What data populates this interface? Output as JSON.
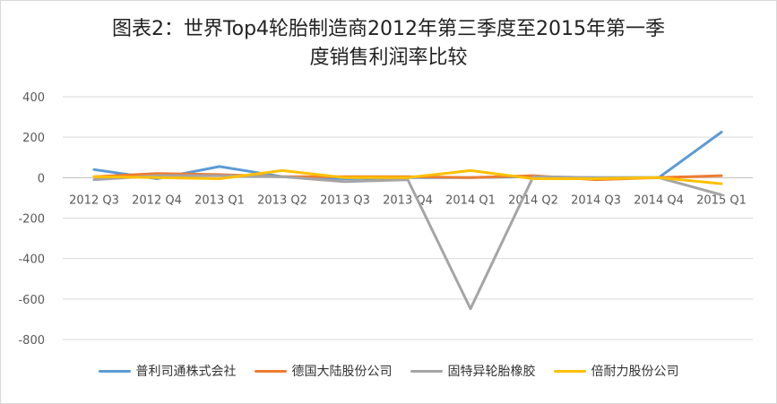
{
  "chart_data": {
    "type": "line",
    "title_line1": "图表2：世界Top4轮胎制造商2012年第三季度至2015年第一季",
    "title_line2": "度销售利润率比较",
    "categories": [
      "2012 Q3",
      "2012 Q4",
      "2013 Q1",
      "2013 Q2",
      "2013 Q3",
      "2013 Q4",
      "2014 Q1",
      "2014 Q2",
      "2014 Q3",
      "2014 Q4",
      "2015 Q1"
    ],
    "y_ticks": [
      "400",
      "200",
      "0",
      "-200",
      "-400",
      "-600",
      "-800"
    ],
    "ylim": [
      -800,
      400
    ],
    "grid": true,
    "legend_position": "bottom",
    "series": [
      {
        "name": "普利司通株式会社",
        "color": "#5B9BD5",
        "values": [
          40,
          -5,
          55,
          5,
          -5,
          0,
          0,
          5,
          0,
          0,
          225
        ]
      },
      {
        "name": "德国大陆股份公司",
        "color": "#ED7D31",
        "values": [
          5,
          20,
          15,
          5,
          5,
          5,
          0,
          10,
          -10,
          0,
          10
        ]
      },
      {
        "name": "固特异轮胎橡胶",
        "color": "#A5A5A5",
        "values": [
          -10,
          10,
          10,
          5,
          -20,
          -10,
          -648,
          5,
          0,
          0,
          -85
        ]
      },
      {
        "name": "倍耐力股份公司",
        "color": "#FFC000",
        "values": [
          5,
          0,
          -5,
          35,
          0,
          0,
          35,
          -5,
          -5,
          0,
          -30
        ]
      }
    ]
  }
}
